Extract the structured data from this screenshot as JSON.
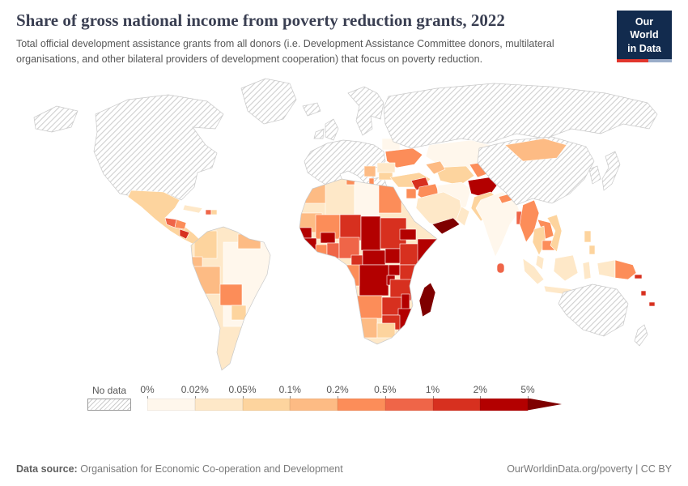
{
  "header": {
    "title": "Share of gross national income from poverty reduction grants, 2022",
    "subtitle": "Total official development assistance grants from all donors (i.e. Development Assistance Committee donors, multilateral organisations, and other bilateral providers of development cooperation) that focus on poverty reduction."
  },
  "logo": {
    "line1": "Our World",
    "line2": "in Data"
  },
  "theme": {
    "navy": "#122B4E",
    "red": "#E2362D",
    "stripe-blue": "#9AADC9",
    "title-color": "#3A3F52",
    "text-gray": "#575757",
    "muted-gray": "#7A7A7A",
    "border-gray": "#C9C9C9"
  },
  "legend": {
    "no_data_label": "No data",
    "tick_labels": [
      "0%",
      "0.02%",
      "0.05%",
      "0.1%",
      "0.2%",
      "0.5%",
      "1%",
      "2%",
      "5%"
    ],
    "colors": [
      "#fff7ec",
      "#fee8c8",
      "#fdd49e",
      "#fdbb84",
      "#fc8d59",
      "#ef6548",
      "#d7301f",
      "#b30000",
      "#7f0000"
    ]
  },
  "footer": {
    "source_label": "Data source:",
    "source_text": "Organisation for Economic Co-operation and Development",
    "right_text": "OurWorldinData.org/poverty | CC BY"
  },
  "chart_data": {
    "type": "heatmap",
    "subtype": "world-choropleth",
    "title": "Share of gross national income from poverty reduction grants",
    "year": 2022,
    "unit": "% of gross national income",
    "scale_type": "sequential-orange-red",
    "bins": [
      "0%",
      "0.02%",
      "0.05%",
      "0.1%",
      "0.2%",
      "0.5%",
      "1%",
      "2%",
      "5%"
    ],
    "bin_colors": [
      "#fff7ec",
      "#fee8c8",
      "#fdd49e",
      "#fdbb84",
      "#fc8d59",
      "#ef6548",
      "#d7301f",
      "#b30000",
      "#7f0000"
    ],
    "no_data_regions": [
      "Canada",
      "United States",
      "Greenland",
      "Iceland",
      "Western Europe",
      "Scandinavia",
      "Russia",
      "China",
      "Japan",
      "South Korea",
      "Greece",
      "Australia",
      "New Zealand"
    ],
    "highest_shaded_regions": [
      "Madagascar",
      "Yemen",
      "Mozambique",
      "Somalia",
      "Democratic Republic of Congo",
      "Afghanistan",
      "Chad",
      "Central African Republic",
      "South Sudan",
      "Malawi",
      "Senegal",
      "Guinea",
      "Burkina Faso",
      "Uganda"
    ],
    "mid_shaded_regions": [
      "Ukraine",
      "Syria",
      "Myanmar",
      "Papua New Guinea",
      "Bolivia",
      "Ethiopia",
      "Tanzania",
      "Kenya",
      "Nigeria",
      "Niger",
      "Sudan",
      "Zambia",
      "Zimbabwe",
      "Cameroon",
      "Nicaragua",
      "Solomon Islands"
    ],
    "low_shaded_regions": [
      "Brazil",
      "India",
      "Kazakhstan",
      "Saudi Arabia",
      "Iran",
      "Indonesia",
      "Mexico",
      "Argentina",
      "Turkey",
      "Libya",
      "Algeria",
      "South Africa",
      "Thailand",
      "Belarus"
    ]
  }
}
